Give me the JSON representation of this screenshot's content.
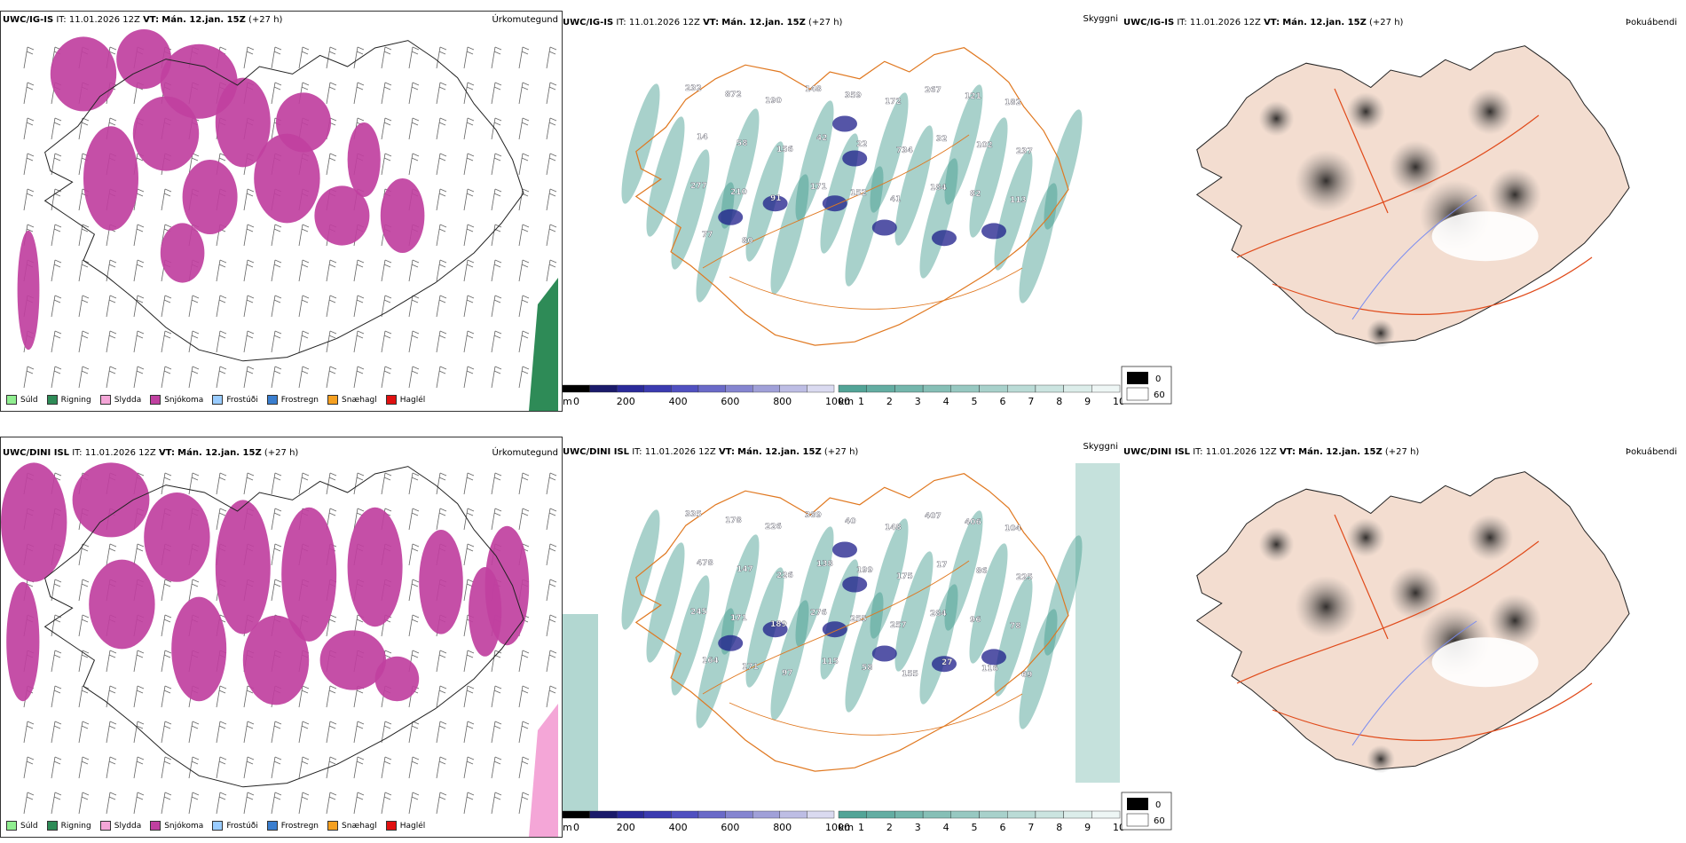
{
  "rows": [
    {
      "model": "UWC/IG-IS",
      "it_label": "IT:",
      "it_value": "11.01.2026 12Z",
      "vt_label": "VT:",
      "vt_value": "Mán. 12.jan. 15Z",
      "lead": "(+27 h)",
      "titles": [
        "Úrkomutegund",
        "Skyggni",
        "Þokuábendi"
      ],
      "height_labels": [
        "232",
        "872",
        "190",
        "148",
        "359",
        "172",
        "267",
        "121",
        "182",
        "14",
        "58",
        "156",
        "42",
        "22",
        "734",
        "32",
        "102",
        "237",
        "277",
        "210",
        "91",
        "171",
        "152",
        "41",
        "184",
        "82",
        "113",
        "77",
        "80"
      ],
      "vis_labels": []
    },
    {
      "model": "UWC/DINI ISL",
      "it_label": "IT:",
      "it_value": "11.01.2026 12Z",
      "vt_label": "VT:",
      "vt_value": "Mán. 12.jan. 15Z",
      "lead": "(+27 h)",
      "titles": [
        "Úrkomutegund",
        "Skyggni",
        "Þokuábendi"
      ],
      "height_labels": [
        "335",
        "178",
        "226",
        "389",
        "40",
        "148",
        "407",
        "406",
        "104",
        "478",
        "147",
        "226",
        "138",
        "199",
        "175",
        "17",
        "86",
        "225",
        "245",
        "171",
        "189",
        "276",
        "255",
        "257",
        "284",
        "96",
        "78",
        "164",
        "171",
        "97",
        "115",
        "58",
        "155",
        "27",
        "116",
        "69"
      ],
      "vis_labels": []
    }
  ],
  "precip_legend": [
    {
      "label": "Súld",
      "color": "#90ee90"
    },
    {
      "label": "Rigning",
      "color": "#2e8b57"
    },
    {
      "label": "Slydda",
      "color": "#f4a6d7"
    },
    {
      "label": "Snjókoma",
      "color": "#c040a0"
    },
    {
      "label": "Frostúði",
      "color": "#99ccff"
    },
    {
      "label": "Frostregn",
      "color": "#3a7ecf"
    },
    {
      "label": "Snæhagl",
      "color": "#f5a020"
    },
    {
      "label": "Haglél",
      "color": "#e01010"
    }
  ],
  "ceiling_scale": {
    "unit": "m",
    "ticks": [
      "0",
      "200",
      "400",
      "600",
      "800",
      "1000"
    ]
  },
  "vis_scale": {
    "unit": "km",
    "ticks": [
      "1",
      "2",
      "3",
      "4",
      "5",
      "6",
      "7",
      "8",
      "9",
      "10"
    ]
  },
  "fog_legend": {
    "ticks": [
      "0",
      "60"
    ]
  },
  "colors": {
    "snow": "#c040a0",
    "rain": "#2e8b57",
    "sleet": "#f4a6d7",
    "teal": "#3f9a8c",
    "navy": "#1c1c8a",
    "orange": "#e07820",
    "land": "#f3ddd0",
    "road": "#e04a1a",
    "river": "#7a8cf0"
  }
}
